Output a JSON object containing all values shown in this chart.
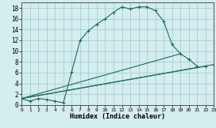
{
  "bg_color": "#d4edef",
  "grid_color": "#a8cdd4",
  "line_color": "#1e6b5a",
  "xlim": [
    0,
    23
  ],
  "ylim": [
    0,
    19
  ],
  "xticks": [
    0,
    1,
    2,
    3,
    4,
    5,
    6,
    7,
    8,
    9,
    10,
    11,
    12,
    13,
    14,
    15,
    16,
    17,
    18,
    19,
    20,
    21,
    22,
    23
  ],
  "yticks": [
    0,
    2,
    4,
    6,
    8,
    10,
    12,
    14,
    16,
    18
  ],
  "xlabel": "Humidex (Indice chaleur)",
  "curve1_x": [
    0,
    1,
    2,
    3,
    4,
    5,
    6,
    7,
    8,
    9,
    10,
    11,
    12,
    13,
    14,
    15,
    16,
    17,
    18
  ],
  "curve1_y": [
    1.2,
    0.7,
    1.2,
    1.0,
    0.7,
    0.4,
    6.2,
    12.0,
    13.8,
    15.0,
    16.0,
    17.2,
    18.2,
    17.8,
    18.2,
    18.2,
    17.5,
    15.5,
    11.2
  ],
  "curve2_x": [
    0,
    19,
    20,
    21
  ],
  "curve2_y": [
    1.2,
    9.5,
    8.5,
    7.2
  ],
  "line3_x": [
    0,
    22
  ],
  "line3_y": [
    1.2,
    7.2
  ],
  "line4_x": [
    0,
    23
  ],
  "line4_y": [
    1.2,
    7.5
  ],
  "dotted_x": [
    0,
    1,
    2,
    3,
    4,
    5
  ],
  "dotted_y": [
    1.2,
    0.7,
    1.2,
    1.0,
    0.7,
    0.4
  ],
  "xlabel_fontsize": 6.0,
  "tick_fontsize_x": 4.5,
  "tick_fontsize_y": 5.5
}
